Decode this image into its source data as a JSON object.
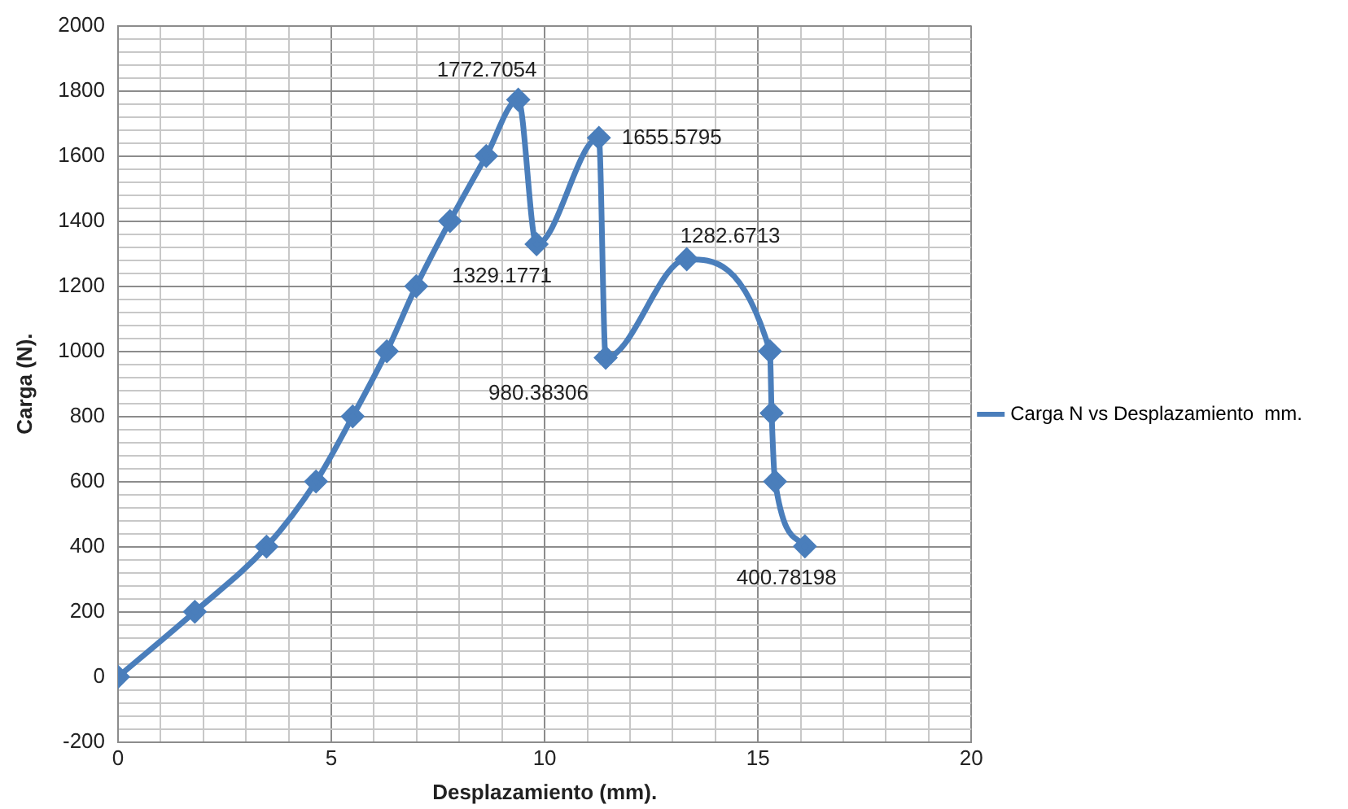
{
  "chart_data": {
    "type": "line",
    "xlabel": "Desplazamiento (mm).",
    "ylabel": "Carga (N).",
    "x": [
      0,
      1.8,
      3.48,
      4.64,
      5.5,
      6.3,
      6.99,
      7.78,
      8.63,
      9.38,
      9.81,
      11.27,
      11.43,
      13.33,
      15.28,
      15.32,
      15.4,
      16.1
    ],
    "series": [
      {
        "name": "Carga N vs Desplazamiento  mm.",
        "color": "#4a7ebb",
        "values": [
          0,
          200,
          400,
          600,
          800,
          1000,
          1200,
          1400,
          1600,
          1772.7054,
          1329.1771,
          1655.5795,
          980.38306,
          1282.6713,
          1000,
          810,
          600,
          400.78198
        ],
        "value_labels": [
          null,
          null,
          null,
          null,
          null,
          null,
          null,
          null,
          null,
          "1772.7054",
          "1329.1771",
          "1655.5795",
          "980.38306",
          "1282.6713",
          null,
          null,
          null,
          "400.78198"
        ]
      }
    ],
    "xlim": [
      0,
      20
    ],
    "xticks": [
      0,
      {
        "value": 1,
        "label": null
      },
      {
        "value": 2,
        "label": null
      },
      {
        "value": 3,
        "label": null
      },
      {
        "value": 4,
        "label": null
      },
      5,
      {
        "value": 6,
        "label": null
      },
      {
        "value": 7,
        "label": null
      },
      {
        "value": 8,
        "label": null
      },
      {
        "value": 9,
        "label": null
      },
      10,
      {
        "value": 11,
        "label": null
      },
      {
        "value": 12,
        "label": null
      },
      {
        "value": 13,
        "label": null
      },
      {
        "value": 14,
        "label": null
      },
      15,
      {
        "value": 16,
        "label": null
      },
      {
        "value": 17,
        "label": null
      },
      {
        "value": 18,
        "label": null
      },
      {
        "value": 19,
        "label": null
      },
      20
    ],
    "ylim": [
      -200,
      2000
    ],
    "yticks": [
      -200,
      {
        "value": -160,
        "label": null
      },
      {
        "value": -120,
        "label": null
      },
      {
        "value": -80,
        "label": null
      },
      {
        "value": -40,
        "label": null
      },
      0,
      {
        "value": 40,
        "label": null
      },
      {
        "value": 80,
        "label": null
      },
      {
        "value": 120,
        "label": null
      },
      {
        "value": 160,
        "label": null
      },
      200,
      {
        "value": 240,
        "label": null
      },
      {
        "value": 280,
        "label": null
      },
      {
        "value": 320,
        "label": null
      },
      {
        "value": 360,
        "label": null
      },
      400,
      {
        "value": 440,
        "label": null
      },
      {
        "value": 480,
        "label": null
      },
      {
        "value": 520,
        "label": null
      },
      {
        "value": 560,
        "label": null
      },
      600,
      {
        "value": 640,
        "label": null
      },
      {
        "value": 680,
        "label": null
      },
      {
        "value": 720,
        "label": null
      },
      {
        "value": 760,
        "label": null
      },
      800,
      {
        "value": 840,
        "label": null
      },
      {
        "value": 880,
        "label": null
      },
      {
        "value": 920,
        "label": null
      },
      {
        "value": 960,
        "label": null
      },
      1000,
      {
        "value": 1040,
        "label": null
      },
      {
        "value": 1080,
        "label": null
      },
      {
        "value": 1120,
        "label": null
      },
      {
        "value": 1160,
        "label": null
      },
      1200,
      {
        "value": 1240,
        "label": null
      },
      {
        "value": 1280,
        "label": null
      },
      {
        "value": 1320,
        "label": null
      },
      {
        "value": 1360,
        "label": null
      },
      1400,
      {
        "value": 1440,
        "label": null
      },
      {
        "value": 1480,
        "label": null
      },
      {
        "value": 1520,
        "label": null
      },
      {
        "value": 1560,
        "label": null
      },
      1600,
      {
        "value": 1640,
        "label": null
      },
      {
        "value": 1680,
        "label": null
      },
      {
        "value": 1720,
        "label": null
      },
      {
        "value": 1760,
        "label": null
      },
      1800,
      {
        "value": 1840,
        "label": null
      },
      {
        "value": 1880,
        "label": null
      },
      {
        "value": 1920,
        "label": null
      },
      {
        "value": 1960,
        "label": null
      },
      2000
    ],
    "grid": true,
    "legend": "right",
    "marker": "diamond",
    "line_style": "solid"
  }
}
